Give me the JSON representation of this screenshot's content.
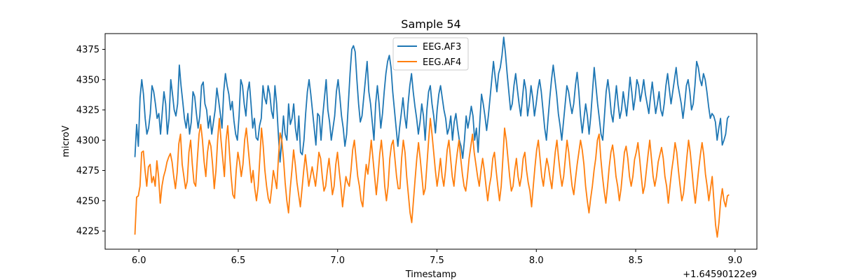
{
  "chart_data": {
    "type": "line",
    "title": "Sample 54",
    "xlabel": "Timestamp",
    "ylabel": "microV",
    "x_offset_label": "+1.64590122e9",
    "xlim": [
      5.83,
      9.11
    ],
    "ylim": [
      4210,
      4388
    ],
    "x_ticks": [
      6.0,
      6.5,
      7.0,
      7.5,
      8.0,
      8.5,
      9.0
    ],
    "x_tick_labels": [
      "6.0",
      "6.5",
      "7.0",
      "7.5",
      "8.0",
      "8.5",
      "9.0"
    ],
    "y_ticks": [
      4225,
      4250,
      4275,
      4300,
      4325,
      4350,
      4375
    ],
    "y_tick_labels": [
      "4225",
      "4250",
      "4275",
      "4300",
      "4325",
      "4350",
      "4375"
    ],
    "legend_position": "top-center",
    "x_start": 5.98,
    "x_end": 8.97,
    "series": [
      {
        "name": "EEG.AF3",
        "color": "#1f77b4",
        "values": [
          4286,
          4313,
          4295,
          4335,
          4350,
          4338,
          4318,
          4305,
          4310,
          4322,
          4345,
          4340,
          4330,
          4318,
          4322,
          4305,
          4323,
          4340,
          4330,
          4305,
          4318,
          4350,
          4338,
          4325,
          4320,
          4330,
          4362,
          4345,
          4332,
          4318,
          4310,
          4322,
          4305,
          4315,
          4340,
          4336,
          4322,
          4310,
          4320,
          4345,
          4348,
          4330,
          4325,
          4310,
          4320,
          4305,
          4315,
          4325,
          4343,
          4333,
          4322,
          4310,
          4340,
          4355,
          4345,
          4338,
          4325,
          4332,
          4316,
          4305,
          4300,
          4320,
          4350,
          4345,
          4330,
          4320,
          4340,
          4348,
          4330,
          4310,
          4318,
          4302,
          4300,
          4312,
          4318,
          4345,
          4335,
          4330,
          4345,
          4338,
          4324,
          4318,
          4345,
          4330,
          4305,
          4282,
          4300,
          4320,
          4305,
          4300,
          4330,
          4313,
          4318,
          4330,
          4310,
          4300,
          4320,
          4290,
          4288,
          4300,
          4322,
          4340,
          4350,
          4338,
          4324,
          4310,
          4296,
          4322,
          4320,
          4300,
          4320,
          4335,
          4350,
          4325,
          4315,
          4300,
          4310,
          4320,
          4340,
          4350,
          4336,
          4320,
          4310,
          4295,
          4305,
          4330,
          4355,
          4375,
          4378,
          4373,
          4350,
          4330,
          4315,
          4320,
          4335,
          4350,
          4365,
          4340,
          4330,
          4315,
          4300,
          4330,
          4345,
          4330,
          4310,
          4322,
          4340,
          4355,
          4365,
          4370,
          4360,
          4340,
          4325,
          4310,
          4295,
          4310,
          4322,
          4335,
          4320,
          4310,
          4330,
          4345,
          4355,
          4340,
          4328,
          4318,
          4305,
          4315,
          4330,
          4320,
          4300,
          4325,
          4340,
          4345,
          4330,
          4320,
          4306,
          4325,
          4338,
          4345,
          4335,
          4325,
          4318,
          4305,
          4310,
          4320,
          4300,
          4315,
          4322,
          4310,
          4300,
          4295,
          4285,
          4300,
          4320,
          4310,
          4318,
          4328,
          4320,
          4300,
          4310,
          4290,
          4315,
          4338,
          4330,
          4320,
          4308,
          4320,
          4335,
          4350,
          4365,
          4352,
          4340,
          4355,
          4360,
          4370,
          4385,
          4372,
          4355,
          4340,
          4325,
          4330,
          4345,
          4355,
          4342,
          4330,
          4320,
          4335,
          4350,
          4342,
          4320,
          4330,
          4345,
          4335,
          4320,
          4330,
          4342,
          4350,
          4340,
          4325,
          4310,
          4300,
          4318,
          4335,
          4350,
          4362,
          4350,
          4338,
          4322,
          4312,
          4300,
          4315,
          4330,
          4345,
          4340,
          4330,
          4322,
          4330,
          4345,
          4356,
          4340,
          4320,
          4306,
          4318,
          4330,
          4320,
          4305,
          4320,
          4340,
          4360,
          4345,
          4330,
          4318,
          4305,
          4300,
          4320,
          4340,
          4350,
          4338,
          4322,
          4315,
          4330,
          4345,
          4330,
          4318,
          4325,
          4340,
          4330,
          4320,
          4335,
          4352,
          4340,
          4325,
          4335,
          4350,
          4345,
          4332,
          4340,
          4350,
          4338,
          4330,
          4322,
          4336,
          4348,
          4335,
          4322,
          4330,
          4340,
          4325,
          4320,
          4330,
          4345,
          4355,
          4342,
          4330,
          4340,
          4350,
          4360,
          4346,
          4338,
          4330,
          4318,
          4330,
          4345,
          4350,
          4340,
          4325,
          4330,
          4345,
          4365,
          4360,
          4350,
          4345,
          4355,
          4350,
          4340,
          4328,
          4318,
          4322,
          4320,
          4315,
          4300,
          4310,
          4318,
          4296,
          4300,
          4305,
          4318,
          4320
        ]
      },
      {
        "name": "EEG.AF4",
        "color": "#ff7f0e",
        "values": [
          4222,
          4253,
          4254,
          4262,
          4290,
          4291,
          4275,
          4262,
          4278,
          4280,
          4265,
          4270,
          4262,
          4283,
          4270,
          4248,
          4262,
          4270,
          4275,
          4282,
          4286,
          4289,
          4282,
          4270,
          4260,
          4273,
          4297,
          4305,
          4280,
          4270,
          4260,
          4266,
          4290,
          4300,
          4280,
          4265,
          4262,
          4285,
          4305,
          4313,
          4300,
          4282,
          4270,
          4290,
          4300,
          4295,
          4280,
          4260,
          4275,
          4300,
          4318,
          4300,
          4285,
          4270,
          4300,
          4312,
          4290,
          4270,
          4255,
          4252,
          4275,
          4290,
          4282,
          4270,
          4280,
          4300,
          4310,
          4295,
          4280,
          4265,
          4275,
          4260,
          4250,
          4262,
          4285,
          4310,
          4295,
          4275,
          4262,
          4252,
          4248,
          4260,
          4275,
          4268,
          4260,
          4285,
          4306,
          4300,
          4285,
          4265,
          4250,
          4240,
          4260,
          4275,
          4292,
          4280,
          4265,
          4255,
          4245,
          4260,
          4275,
          4288,
          4275,
          4262,
          4270,
          4278,
          4270,
          4262,
          4275,
          4290,
          4285,
          4270,
          4258,
          4262,
          4275,
          4285,
          4270,
          4255,
          4262,
          4280,
          4290,
          4275,
          4262,
          4245,
          4258,
          4270,
          4265,
          4262,
          4275,
          4292,
          4300,
          4285,
          4270,
          4262,
          4250,
          4245,
          4265,
          4280,
          4272,
          4285,
          4300,
          4285,
          4270,
          4255,
          4270,
          4288,
          4300,
          4285,
          4262,
          4250,
          4262,
          4285,
          4296,
          4300,
          4285,
          4270,
          4260,
          4260,
          4285,
          4300,
          4290,
          4270,
          4255,
          4240,
          4232,
          4250,
          4268,
          4285,
          4298,
          4285,
          4270,
          4255,
          4260,
          4280,
          4300,
          4318,
          4305,
          4290,
          4275,
          4262,
          4272,
          4285,
          4270,
          4262,
          4275,
          4292,
          4300,
          4285,
          4270,
          4262,
          4278,
          4290,
          4300,
          4285,
          4272,
          4262,
          4258,
          4270,
          4285,
          4295,
          4305,
          4290,
          4280,
          4270,
          4262,
          4275,
          4285,
          4275,
          4262,
          4250,
          4262,
          4270,
          4285,
          4290,
          4275,
          4262,
          4250,
          4262,
          4285,
          4310,
          4300,
          4285,
          4270,
          4258,
          4262,
          4275,
          4285,
          4270,
          4262,
          4270,
          4285,
          4290,
          4275,
          4265,
          4258,
          4245,
          4262,
          4278,
          4292,
          4300,
          4285,
          4270,
          4262,
          4275,
          4285,
          4278,
          4268,
          4260,
          4275,
          4290,
          4300,
          4285,
          4272,
          4262,
          4270,
          4285,
          4300,
          4290,
          4275,
          4262,
          4255,
          4268,
          4280,
          4290,
          4300,
          4292,
          4280,
          4262,
          4250,
          4240,
          4252,
          4262,
          4275,
          4285,
          4300,
          4305,
          4285,
          4270,
          4258,
          4248,
          4262,
          4278,
          4290,
          4296,
          4285,
          4270,
          4262,
          4250,
          4260,
          4275,
          4290,
          4295,
          4285,
          4270,
          4262,
          4270,
          4284,
          4290,
          4298,
          4285,
          4270,
          4256,
          4262,
          4275,
          4288,
          4300,
          4285,
          4270,
          4262,
          4270,
          4282,
          4288,
          4294,
          4285,
          4270,
          4262,
          4248,
          4262,
          4275,
          4285,
          4298,
          4290,
          4275,
          4262,
          4250,
          4256,
          4270,
          4286,
          4300,
          4290,
          4275,
          4260,
          4248,
          4262,
          4276,
          4288,
          4298,
          4288,
          4272,
          4262,
          4250,
          4260,
          4270,
          4250,
          4230,
          4220,
          4232,
          4250,
          4260,
          4250,
          4245,
          4254,
          4255
        ]
      }
    ]
  }
}
